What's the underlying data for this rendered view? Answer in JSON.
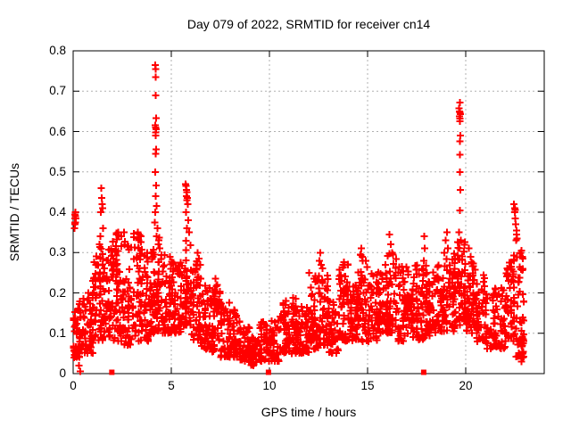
{
  "chart_data": {
    "type": "scatter",
    "title": "Day 079 of 2022, SRMTID for receiver cn14",
    "xlabel": "GPS time / hours",
    "ylabel": "SRMTID / TECUs",
    "xlim": [
      0,
      24
    ],
    "ylim": [
      0,
      0.8
    ],
    "grid": "dotted",
    "legend": "none",
    "x_ticks": [
      {
        "v": 0,
        "label": "0"
      },
      {
        "v": 5,
        "label": "5"
      },
      {
        "v": 10,
        "label": "10"
      },
      {
        "v": 15,
        "label": "15"
      },
      {
        "v": 20,
        "label": "20"
      }
    ],
    "y_ticks": [
      {
        "v": 0.0,
        "label": "0"
      },
      {
        "v": 0.1,
        "label": "0.1"
      },
      {
        "v": 0.2,
        "label": "0.2"
      },
      {
        "v": 0.3,
        "label": "0.3"
      },
      {
        "v": 0.4,
        "label": "0.4"
      },
      {
        "v": 0.5,
        "label": "0.5"
      },
      {
        "v": 0.6,
        "label": "0.6"
      },
      {
        "v": 0.7,
        "label": "0.7"
      },
      {
        "v": 0.8,
        "label": "0.8"
      }
    ],
    "marker": "plus",
    "marker_color": "#ff0000",
    "grid_color": "#b0b0b0",
    "frame_color": "#000000",
    "seed": 20220079,
    "density_bands": [
      [
        0.03,
        0.5,
        0.04,
        0.18,
        55
      ],
      [
        0.5,
        1.0,
        0.05,
        0.2,
        50
      ],
      [
        1.0,
        1.5,
        0.08,
        0.33,
        55
      ],
      [
        1.5,
        2.0,
        0.08,
        0.31,
        55
      ],
      [
        2.0,
        2.5,
        0.08,
        0.35,
        60
      ],
      [
        2.5,
        3.0,
        0.07,
        0.33,
        55
      ],
      [
        3.0,
        3.5,
        0.08,
        0.35,
        55
      ],
      [
        3.5,
        4.0,
        0.08,
        0.3,
        50
      ],
      [
        4.0,
        4.5,
        0.1,
        0.35,
        55
      ],
      [
        4.5,
        5.0,
        0.1,
        0.3,
        50
      ],
      [
        5.0,
        5.5,
        0.1,
        0.28,
        50
      ],
      [
        5.5,
        6.0,
        0.12,
        0.33,
        55
      ],
      [
        6.0,
        6.5,
        0.08,
        0.28,
        50
      ],
      [
        6.5,
        7.0,
        0.06,
        0.22,
        45
      ],
      [
        7.0,
        7.5,
        0.05,
        0.22,
        45
      ],
      [
        7.5,
        8.0,
        0.04,
        0.18,
        45
      ],
      [
        8.0,
        8.5,
        0.04,
        0.16,
        40
      ],
      [
        8.5,
        9.0,
        0.03,
        0.12,
        40
      ],
      [
        9.0,
        9.5,
        0.02,
        0.1,
        35
      ],
      [
        9.5,
        10.0,
        0.03,
        0.13,
        40
      ],
      [
        10.0,
        10.5,
        0.03,
        0.14,
        40
      ],
      [
        10.5,
        11.0,
        0.05,
        0.18,
        45
      ],
      [
        11.0,
        11.5,
        0.05,
        0.2,
        45
      ],
      [
        11.5,
        12.0,
        0.05,
        0.18,
        45
      ],
      [
        12.0,
        12.5,
        0.06,
        0.25,
        50
      ],
      [
        12.5,
        13.0,
        0.07,
        0.27,
        50
      ],
      [
        13.0,
        13.5,
        0.05,
        0.18,
        40
      ],
      [
        13.5,
        14.0,
        0.08,
        0.28,
        50
      ],
      [
        14.0,
        14.5,
        0.08,
        0.22,
        45
      ],
      [
        14.5,
        15.0,
        0.08,
        0.3,
        50
      ],
      [
        15.0,
        15.5,
        0.08,
        0.25,
        45
      ],
      [
        15.5,
        16.0,
        0.1,
        0.27,
        50
      ],
      [
        16.0,
        16.5,
        0.1,
        0.3,
        50
      ],
      [
        16.5,
        17.0,
        0.08,
        0.27,
        45
      ],
      [
        17.0,
        17.5,
        0.09,
        0.27,
        45
      ],
      [
        17.5,
        18.0,
        0.08,
        0.28,
        50
      ],
      [
        18.0,
        18.5,
        0.09,
        0.26,
        45
      ],
      [
        18.5,
        19.0,
        0.1,
        0.28,
        50
      ],
      [
        19.0,
        19.5,
        0.1,
        0.3,
        50
      ],
      [
        19.5,
        20.0,
        0.12,
        0.33,
        55
      ],
      [
        20.0,
        20.5,
        0.1,
        0.28,
        55
      ],
      [
        20.5,
        21.0,
        0.08,
        0.25,
        45
      ],
      [
        21.0,
        21.5,
        0.06,
        0.2,
        40
      ],
      [
        21.5,
        22.0,
        0.06,
        0.22,
        40
      ],
      [
        22.0,
        22.5,
        0.08,
        0.3,
        55
      ],
      [
        22.5,
        22.95,
        0.04,
        0.32,
        50
      ]
    ],
    "spike_points": [
      [
        0.07,
        0.36
      ],
      [
        0.08,
        0.375
      ],
      [
        0.09,
        0.385
      ],
      [
        0.1,
        0.395
      ],
      [
        0.1,
        0.37
      ],
      [
        0.11,
        0.39
      ],
      [
        0.12,
        0.4
      ],
      [
        0.12,
        0.375
      ],
      [
        0.13,
        0.385
      ],
      [
        0.36,
        0.005
      ],
      [
        0.3,
        0.02
      ],
      [
        1.38,
        0.34
      ],
      [
        1.42,
        0.4
      ],
      [
        1.44,
        0.46
      ],
      [
        1.45,
        0.435
      ],
      [
        1.47,
        0.42
      ],
      [
        1.5,
        0.41
      ],
      [
        1.53,
        0.36
      ],
      [
        2.2,
        0.345
      ],
      [
        2.3,
        0.35
      ],
      [
        2.45,
        0.34
      ],
      [
        2.6,
        0.35
      ],
      [
        3.3,
        0.35
      ],
      [
        3.35,
        0.33
      ],
      [
        4.18,
        0.765
      ],
      [
        4.21,
        0.755
      ],
      [
        4.2,
        0.735
      ],
      [
        4.2,
        0.69
      ],
      [
        4.22,
        0.633
      ],
      [
        4.19,
        0.615
      ],
      [
        4.21,
        0.61
      ],
      [
        4.23,
        0.605
      ],
      [
        4.2,
        0.598
      ],
      [
        4.21,
        0.59
      ],
      [
        4.22,
        0.556
      ],
      [
        4.2,
        0.545
      ],
      [
        4.18,
        0.5
      ],
      [
        4.22,
        0.466
      ],
      [
        4.2,
        0.44
      ],
      [
        4.24,
        0.415
      ],
      [
        4.19,
        0.4
      ],
      [
        4.15,
        0.375
      ],
      [
        4.3,
        0.36
      ],
      [
        4.35,
        0.32
      ],
      [
        4.4,
        0.31
      ],
      [
        5.72,
        0.47
      ],
      [
        5.76,
        0.465
      ],
      [
        5.78,
        0.455
      ],
      [
        5.8,
        0.45
      ],
      [
        5.77,
        0.44
      ],
      [
        5.81,
        0.435
      ],
      [
        5.79,
        0.43
      ],
      [
        5.84,
        0.42
      ],
      [
        5.74,
        0.4
      ],
      [
        5.86,
        0.38
      ],
      [
        5.8,
        0.36
      ],
      [
        5.9,
        0.35
      ],
      [
        6.35,
        0.3
      ],
      [
        6.42,
        0.285
      ],
      [
        6.48,
        0.27
      ],
      [
        7.25,
        0.235
      ],
      [
        7.35,
        0.22
      ],
      [
        12.55,
        0.28
      ],
      [
        12.6,
        0.3
      ],
      [
        12.63,
        0.27
      ],
      [
        14.68,
        0.31
      ],
      [
        14.72,
        0.29
      ],
      [
        14.76,
        0.28
      ],
      [
        16.12,
        0.345
      ],
      [
        16.18,
        0.32
      ],
      [
        16.24,
        0.3
      ],
      [
        17.88,
        0.34
      ],
      [
        17.92,
        0.31
      ],
      [
        18.92,
        0.3
      ],
      [
        18.98,
        0.33
      ],
      [
        19.05,
        0.35
      ],
      [
        19.1,
        0.31
      ],
      [
        19.7,
        0.672
      ],
      [
        19.67,
        0.658
      ],
      [
        19.69,
        0.65
      ],
      [
        19.71,
        0.648
      ],
      [
        19.72,
        0.643
      ],
      [
        19.68,
        0.638
      ],
      [
        19.7,
        0.632
      ],
      [
        19.71,
        0.625
      ],
      [
        19.73,
        0.59
      ],
      [
        19.7,
        0.576
      ],
      [
        19.71,
        0.543
      ],
      [
        19.7,
        0.499
      ],
      [
        19.72,
        0.455
      ],
      [
        19.7,
        0.404
      ],
      [
        19.67,
        0.35
      ],
      [
        19.75,
        0.33
      ],
      [
        20.15,
        0.31
      ],
      [
        20.25,
        0.29
      ],
      [
        22.46,
        0.42
      ],
      [
        22.5,
        0.41
      ],
      [
        22.53,
        0.405
      ],
      [
        22.49,
        0.4
      ],
      [
        22.52,
        0.385
      ],
      [
        22.55,
        0.37
      ],
      [
        22.58,
        0.355
      ],
      [
        22.6,
        0.345
      ],
      [
        22.62,
        0.335
      ],
      [
        22.57,
        0.33
      ],
      [
        22.8,
        0.3
      ],
      [
        22.85,
        0.305
      ],
      [
        22.88,
        0.29
      ],
      [
        22.85,
        0.03
      ],
      [
        22.88,
        0.07
      ],
      [
        22.9,
        0.05
      ],
      [
        22.92,
        0.04
      ]
    ],
    "baseline_squares": [
      1.97,
      9.95,
      17.86
    ]
  }
}
